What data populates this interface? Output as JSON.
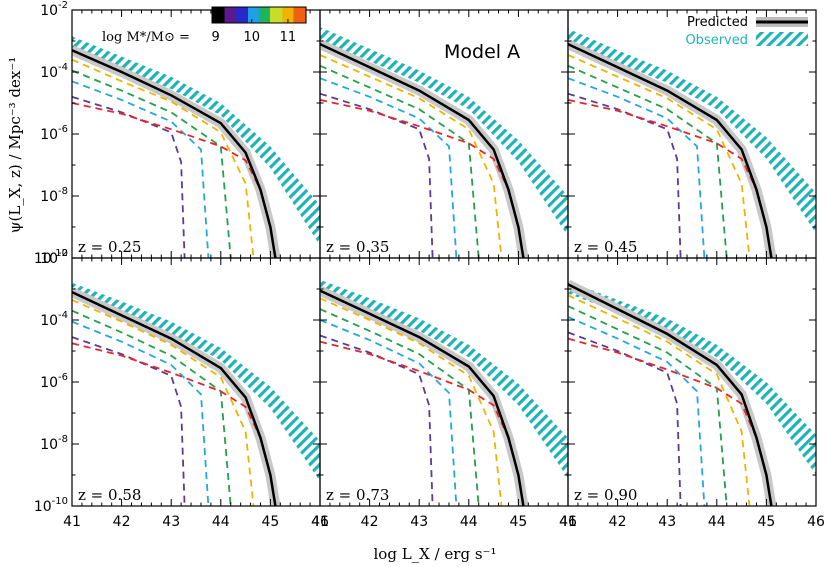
{
  "figure": {
    "model_label": "Model A",
    "y_axis_title": "ψ(L_X, z) / Mpc⁻³ dex⁻¹",
    "x_axis_title": "log L_X / erg s⁻¹"
  },
  "colorbar": {
    "label": "log M*/M⊙ =",
    "ticks": [
      "9",
      "10",
      "11"
    ],
    "range": [
      8.9,
      11.5
    ]
  },
  "legend": {
    "predicted_label": "Predicted",
    "observed_label": "Observed",
    "predicted_color": "#000000",
    "observed_color": "#1fb3b8"
  },
  "mass_bin_colors": [
    "#5b3a9a",
    "#22a8e0",
    "#22a04a",
    "#f0b400",
    "#e8262a"
  ],
  "chart_data": [
    {
      "type": "line",
      "panel_label": "z = 0.25",
      "xlim": [
        41,
        46
      ],
      "ylim_log10": [
        -10,
        -2
      ],
      "predicted_total": {
        "x": [
          41,
          42,
          43,
          44,
          44.5,
          44.8,
          45.0,
          45.1
        ],
        "log_y": [
          -3.3,
          -4.0,
          -4.75,
          -5.65,
          -6.6,
          -7.8,
          -9.0,
          -10
        ]
      },
      "observed_band": {
        "x": [
          41,
          42,
          43,
          44,
          45,
          46
        ],
        "log_y_low": [
          -3.2,
          -3.9,
          -4.55,
          -5.4,
          -7.1,
          -9.6
        ],
        "log_y_high": [
          -2.85,
          -3.5,
          -4.15,
          -5.0,
          -6.4,
          -8.3
        ]
      },
      "mass_bins": [
        {
          "x": [
            41,
            42,
            43,
            43.2,
            43.27
          ],
          "log_y": [
            -4.8,
            -5.3,
            -5.95,
            -6.9,
            -10
          ]
        },
        {
          "x": [
            41,
            42,
            43,
            43.6,
            43.75
          ],
          "log_y": [
            -4.3,
            -4.9,
            -5.6,
            -6.5,
            -10
          ]
        },
        {
          "x": [
            41,
            42,
            43,
            44.0,
            44.2
          ],
          "log_y": [
            -3.95,
            -4.6,
            -5.3,
            -6.4,
            -10
          ]
        },
        {
          "x": [
            41,
            42,
            43,
            44,
            44.5,
            44.66
          ],
          "log_y": [
            -3.6,
            -4.3,
            -4.95,
            -5.95,
            -7.6,
            -10
          ]
        },
        {
          "x": [
            41,
            42,
            43,
            44,
            44.5,
            44.8,
            45.0,
            45.1
          ],
          "log_y": [
            -5.0,
            -5.35,
            -5.85,
            -6.4,
            -6.85,
            -7.8,
            -9.0,
            -10
          ]
        }
      ]
    },
    {
      "type": "line",
      "panel_label": "z = 0.35",
      "xlim": [
        41,
        46
      ],
      "ylim_log10": [
        -10,
        -2
      ],
      "predicted_total": {
        "x": [
          41,
          42,
          43,
          44,
          44.5,
          44.8,
          45.0,
          45.1
        ],
        "log_y": [
          -3.1,
          -3.85,
          -4.6,
          -5.55,
          -6.5,
          -7.8,
          -9.0,
          -10
        ]
      },
      "observed_band": {
        "x": [
          41,
          42,
          43,
          44,
          45,
          46
        ],
        "log_y_low": [
          -2.95,
          -3.65,
          -4.35,
          -5.2,
          -6.9,
          -9.3
        ],
        "log_y_high": [
          -2.55,
          -3.25,
          -3.95,
          -4.8,
          -6.2,
          -8.0
        ]
      },
      "mass_bins": [
        {
          "x": [
            41,
            42,
            43,
            43.2,
            43.27
          ],
          "log_y": [
            -4.7,
            -5.2,
            -5.85,
            -6.8,
            -10
          ]
        },
        {
          "x": [
            41,
            42,
            43,
            43.6,
            43.75
          ],
          "log_y": [
            -4.2,
            -4.8,
            -5.5,
            -6.4,
            -10
          ]
        },
        {
          "x": [
            41,
            42,
            43,
            44.0,
            44.2
          ],
          "log_y": [
            -3.8,
            -4.5,
            -5.2,
            -6.3,
            -10
          ]
        },
        {
          "x": [
            41,
            42,
            43,
            44,
            44.5,
            44.66
          ],
          "log_y": [
            -3.45,
            -4.15,
            -4.85,
            -5.85,
            -7.6,
            -10
          ]
        },
        {
          "x": [
            41,
            42,
            43,
            44,
            44.5,
            44.8,
            45.0,
            45.1
          ],
          "log_y": [
            -4.9,
            -5.25,
            -5.75,
            -6.3,
            -6.8,
            -7.8,
            -9.0,
            -10
          ]
        }
      ]
    },
    {
      "type": "line",
      "panel_label": "z = 0.45",
      "xlim": [
        41,
        46
      ],
      "ylim_log10": [
        -10,
        -2
      ],
      "predicted_total": {
        "x": [
          41,
          42,
          43,
          44,
          44.5,
          44.8,
          45.0,
          45.1
        ],
        "log_y": [
          -3.1,
          -3.85,
          -4.6,
          -5.55,
          -6.5,
          -7.8,
          -9.0,
          -10
        ]
      },
      "observed_band": {
        "x": [
          41,
          42,
          43,
          44,
          45,
          46
        ],
        "log_y_low": [
          -3.0,
          -3.7,
          -4.35,
          -5.2,
          -6.8,
          -9.2
        ],
        "log_y_high": [
          -2.6,
          -3.3,
          -3.95,
          -4.8,
          -6.1,
          -7.9
        ]
      },
      "mass_bins": [
        {
          "x": [
            41,
            42,
            43,
            43.2,
            43.27
          ],
          "log_y": [
            -4.7,
            -5.2,
            -5.85,
            -6.8,
            -10
          ]
        },
        {
          "x": [
            41,
            42,
            43,
            43.6,
            43.75
          ],
          "log_y": [
            -4.2,
            -4.8,
            -5.5,
            -6.4,
            -10
          ]
        },
        {
          "x": [
            41,
            42,
            43,
            44.0,
            44.2
          ],
          "log_y": [
            -3.8,
            -4.5,
            -5.2,
            -6.3,
            -10
          ]
        },
        {
          "x": [
            41,
            42,
            43,
            44,
            44.5,
            44.66
          ],
          "log_y": [
            -3.45,
            -4.15,
            -4.85,
            -5.85,
            -7.6,
            -10
          ]
        },
        {
          "x": [
            41,
            42,
            43,
            44,
            44.5,
            44.8,
            45.0,
            45.1
          ],
          "log_y": [
            -4.9,
            -5.25,
            -5.75,
            -6.3,
            -6.8,
            -7.8,
            -9.0,
            -10
          ]
        }
      ]
    },
    {
      "type": "line",
      "panel_label": "z = 0.58",
      "xlim": [
        41,
        46
      ],
      "ylim_log10": [
        -10,
        -2
      ],
      "predicted_total": {
        "x": [
          41,
          42,
          43,
          44,
          44.5,
          44.8,
          45.0,
          45.1
        ],
        "log_y": [
          -3.1,
          -3.85,
          -4.6,
          -5.55,
          -6.5,
          -7.8,
          -9.0,
          -10
        ]
      },
      "observed_band": {
        "x": [
          41,
          42,
          43,
          44,
          45,
          46
        ],
        "log_y_low": [
          -3.2,
          -3.8,
          -4.45,
          -5.3,
          -6.85,
          -9.2
        ],
        "log_y_high": [
          -2.8,
          -3.4,
          -4.05,
          -4.9,
          -6.15,
          -7.9
        ]
      },
      "mass_bins": [
        {
          "x": [
            41,
            42,
            43,
            43.2,
            43.27
          ],
          "log_y": [
            -4.55,
            -5.1,
            -5.8,
            -6.8,
            -10
          ]
        },
        {
          "x": [
            41,
            42,
            43,
            43.6,
            43.75
          ],
          "log_y": [
            -4.05,
            -4.7,
            -5.45,
            -6.4,
            -10
          ]
        },
        {
          "x": [
            41,
            42,
            43,
            44.0,
            44.2
          ],
          "log_y": [
            -3.7,
            -4.4,
            -5.15,
            -6.3,
            -10
          ]
        },
        {
          "x": [
            41,
            42,
            43,
            44,
            44.5,
            44.66
          ],
          "log_y": [
            -3.35,
            -4.05,
            -4.8,
            -5.85,
            -7.6,
            -10
          ]
        },
        {
          "x": [
            41,
            42,
            43,
            44,
            44.5,
            44.8,
            45.0,
            45.1
          ],
          "log_y": [
            -4.75,
            -5.15,
            -5.7,
            -6.3,
            -6.8,
            -7.8,
            -9.0,
            -10
          ]
        }
      ]
    },
    {
      "type": "line",
      "panel_label": "z = 0.73",
      "xlim": [
        41,
        46
      ],
      "ylim_log10": [
        -10,
        -2
      ],
      "predicted_total": {
        "x": [
          41,
          42,
          43,
          44,
          44.5,
          44.8,
          45.0,
          45.1
        ],
        "log_y": [
          -3.05,
          -3.8,
          -4.55,
          -5.5,
          -6.45,
          -7.8,
          -9.0,
          -10
        ]
      },
      "observed_band": {
        "x": [
          41,
          42,
          43,
          44,
          45,
          46
        ],
        "log_y_low": [
          -3.1,
          -3.7,
          -4.35,
          -5.2,
          -6.75,
          -9.1
        ],
        "log_y_high": [
          -2.7,
          -3.3,
          -3.95,
          -4.8,
          -6.05,
          -7.8
        ]
      },
      "mass_bins": [
        {
          "x": [
            41,
            42,
            43,
            43.2,
            43.27
          ],
          "log_y": [
            -4.5,
            -5.05,
            -5.75,
            -6.75,
            -10
          ]
        },
        {
          "x": [
            41,
            42,
            43,
            43.6,
            43.75
          ],
          "log_y": [
            -4.0,
            -4.65,
            -5.4,
            -6.35,
            -10
          ]
        },
        {
          "x": [
            41,
            42,
            43,
            44.0,
            44.2
          ],
          "log_y": [
            -3.65,
            -4.35,
            -5.1,
            -6.25,
            -10
          ]
        },
        {
          "x": [
            41,
            42,
            43,
            44,
            44.5,
            44.66
          ],
          "log_y": [
            -3.3,
            -4.0,
            -4.75,
            -5.8,
            -7.6,
            -10
          ]
        },
        {
          "x": [
            41,
            42,
            43,
            44,
            44.5,
            44.8,
            45.0,
            45.1
          ],
          "log_y": [
            -4.7,
            -5.1,
            -5.65,
            -6.25,
            -6.75,
            -7.8,
            -9.0,
            -10
          ]
        }
      ]
    },
    {
      "type": "line",
      "panel_label": "z = 0.90",
      "xlim": [
        41,
        46
      ],
      "ylim_log10": [
        -10,
        -2
      ],
      "predicted_total": {
        "x": [
          41,
          42,
          43,
          44,
          44.5,
          44.8,
          45.0,
          45.1
        ],
        "log_y": [
          -2.85,
          -3.65,
          -4.45,
          -5.45,
          -6.4,
          -7.8,
          -9.0,
          -10
        ]
      },
      "observed_band": {
        "x": [
          41,
          42,
          43,
          44,
          45,
          46
        ],
        "log_y_low": [
          -3.15,
          -3.75,
          -4.35,
          -5.2,
          -6.7,
          -9.0
        ],
        "log_y_high": [
          -2.75,
          -3.35,
          -3.95,
          -4.8,
          -6.0,
          -7.7
        ]
      },
      "mass_bins": [
        {
          "x": [
            41,
            42,
            43,
            43.2,
            43.27
          ],
          "log_y": [
            -4.4,
            -5.0,
            -5.7,
            -6.7,
            -10
          ]
        },
        {
          "x": [
            41,
            42,
            43,
            43.6,
            43.75
          ],
          "log_y": [
            -3.9,
            -4.6,
            -5.35,
            -6.3,
            -10
          ]
        },
        {
          "x": [
            41,
            42,
            43,
            44.0,
            44.2
          ],
          "log_y": [
            -3.55,
            -4.3,
            -5.05,
            -6.2,
            -10
          ]
        },
        {
          "x": [
            41,
            42,
            43,
            44,
            44.5,
            44.66
          ],
          "log_y": [
            -3.2,
            -3.95,
            -4.7,
            -5.75,
            -7.6,
            -10
          ]
        },
        {
          "x": [
            41,
            42,
            43,
            44,
            44.5,
            44.8,
            45.0,
            45.1
          ],
          "log_y": [
            -4.6,
            -5.05,
            -5.6,
            -6.2,
            -6.7,
            -7.8,
            -9.0,
            -10
          ]
        }
      ]
    }
  ],
  "axes": {
    "x_ticks": [
      "41",
      "42",
      "43",
      "44",
      "45",
      "46"
    ],
    "y_ticks": [
      {
        "mant": "10",
        "exp": "-2"
      },
      {
        "mant": "10",
        "exp": "-4"
      },
      {
        "mant": "10",
        "exp": "-6"
      },
      {
        "mant": "10",
        "exp": "-8"
      },
      {
        "mant": "10",
        "exp": "-10"
      }
    ]
  }
}
